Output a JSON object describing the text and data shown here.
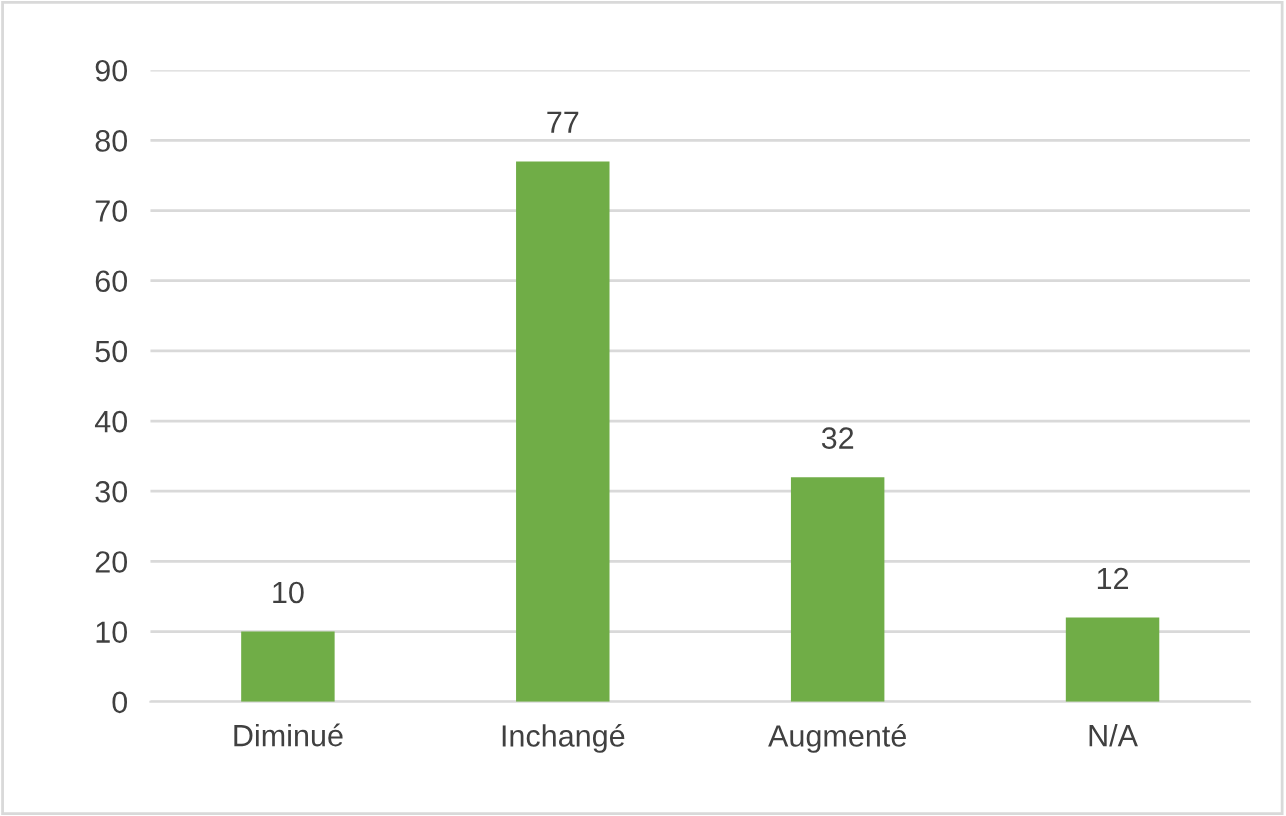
{
  "chart_data": {
    "type": "bar",
    "categories": [
      "Diminué",
      "Inchangé",
      "Augmenté",
      "N/A"
    ],
    "values": [
      10,
      77,
      32,
      12
    ],
    "color": "#70ad47",
    "ylim": [
      0,
      90
    ],
    "yticks": [
      0,
      10,
      20,
      30,
      40,
      50,
      60,
      70,
      80,
      90
    ],
    "grid": "y",
    "data_labels": true
  }
}
